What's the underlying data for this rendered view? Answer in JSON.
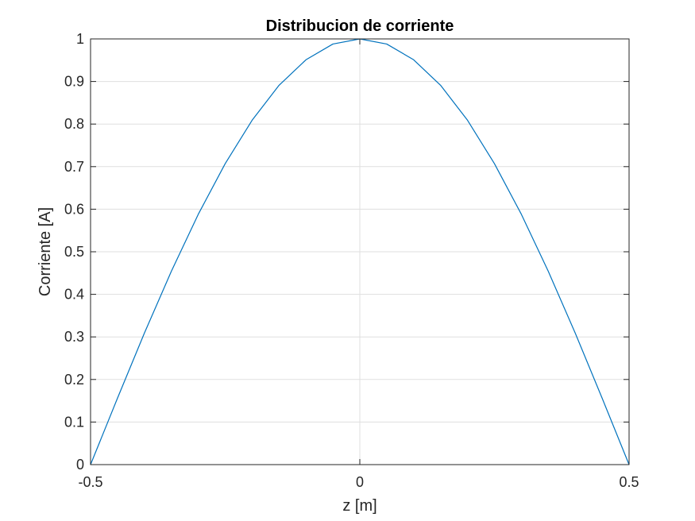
{
  "chart_data": {
    "type": "line",
    "title": "Distribucion de corriente",
    "xlabel": "z [m]",
    "ylabel": "Corriente [A]",
    "xlim": [
      -0.5,
      0.5
    ],
    "ylim": [
      0,
      1
    ],
    "x_ticks": [
      -0.5,
      0,
      0.5
    ],
    "x_tick_labels": [
      "-0.5",
      "0",
      "0.5"
    ],
    "y_ticks": [
      0,
      0.1,
      0.2,
      0.3,
      0.4,
      0.5,
      0.6,
      0.7,
      0.8,
      0.9,
      1
    ],
    "y_tick_labels": [
      "0",
      "0.1",
      "0.2",
      "0.3",
      "0.4",
      "0.5",
      "0.6",
      "0.7",
      "0.8",
      "0.9",
      "1"
    ],
    "grid": true,
    "series_color": "#0072BD",
    "series": [
      {
        "x": [
          -0.5,
          -0.45,
          -0.4,
          -0.35,
          -0.3,
          -0.25,
          -0.2,
          -0.15,
          -0.1,
          -0.05,
          0,
          0.05,
          0.1,
          0.15,
          0.2,
          0.25,
          0.3,
          0.35,
          0.4,
          0.45,
          0.5
        ],
        "values": [
          0,
          0.156,
          0.309,
          0.454,
          0.588,
          0.707,
          0.809,
          0.891,
          0.951,
          0.988,
          1,
          0.988,
          0.951,
          0.891,
          0.809,
          0.707,
          0.588,
          0.454,
          0.309,
          0.156,
          0
        ]
      }
    ]
  }
}
